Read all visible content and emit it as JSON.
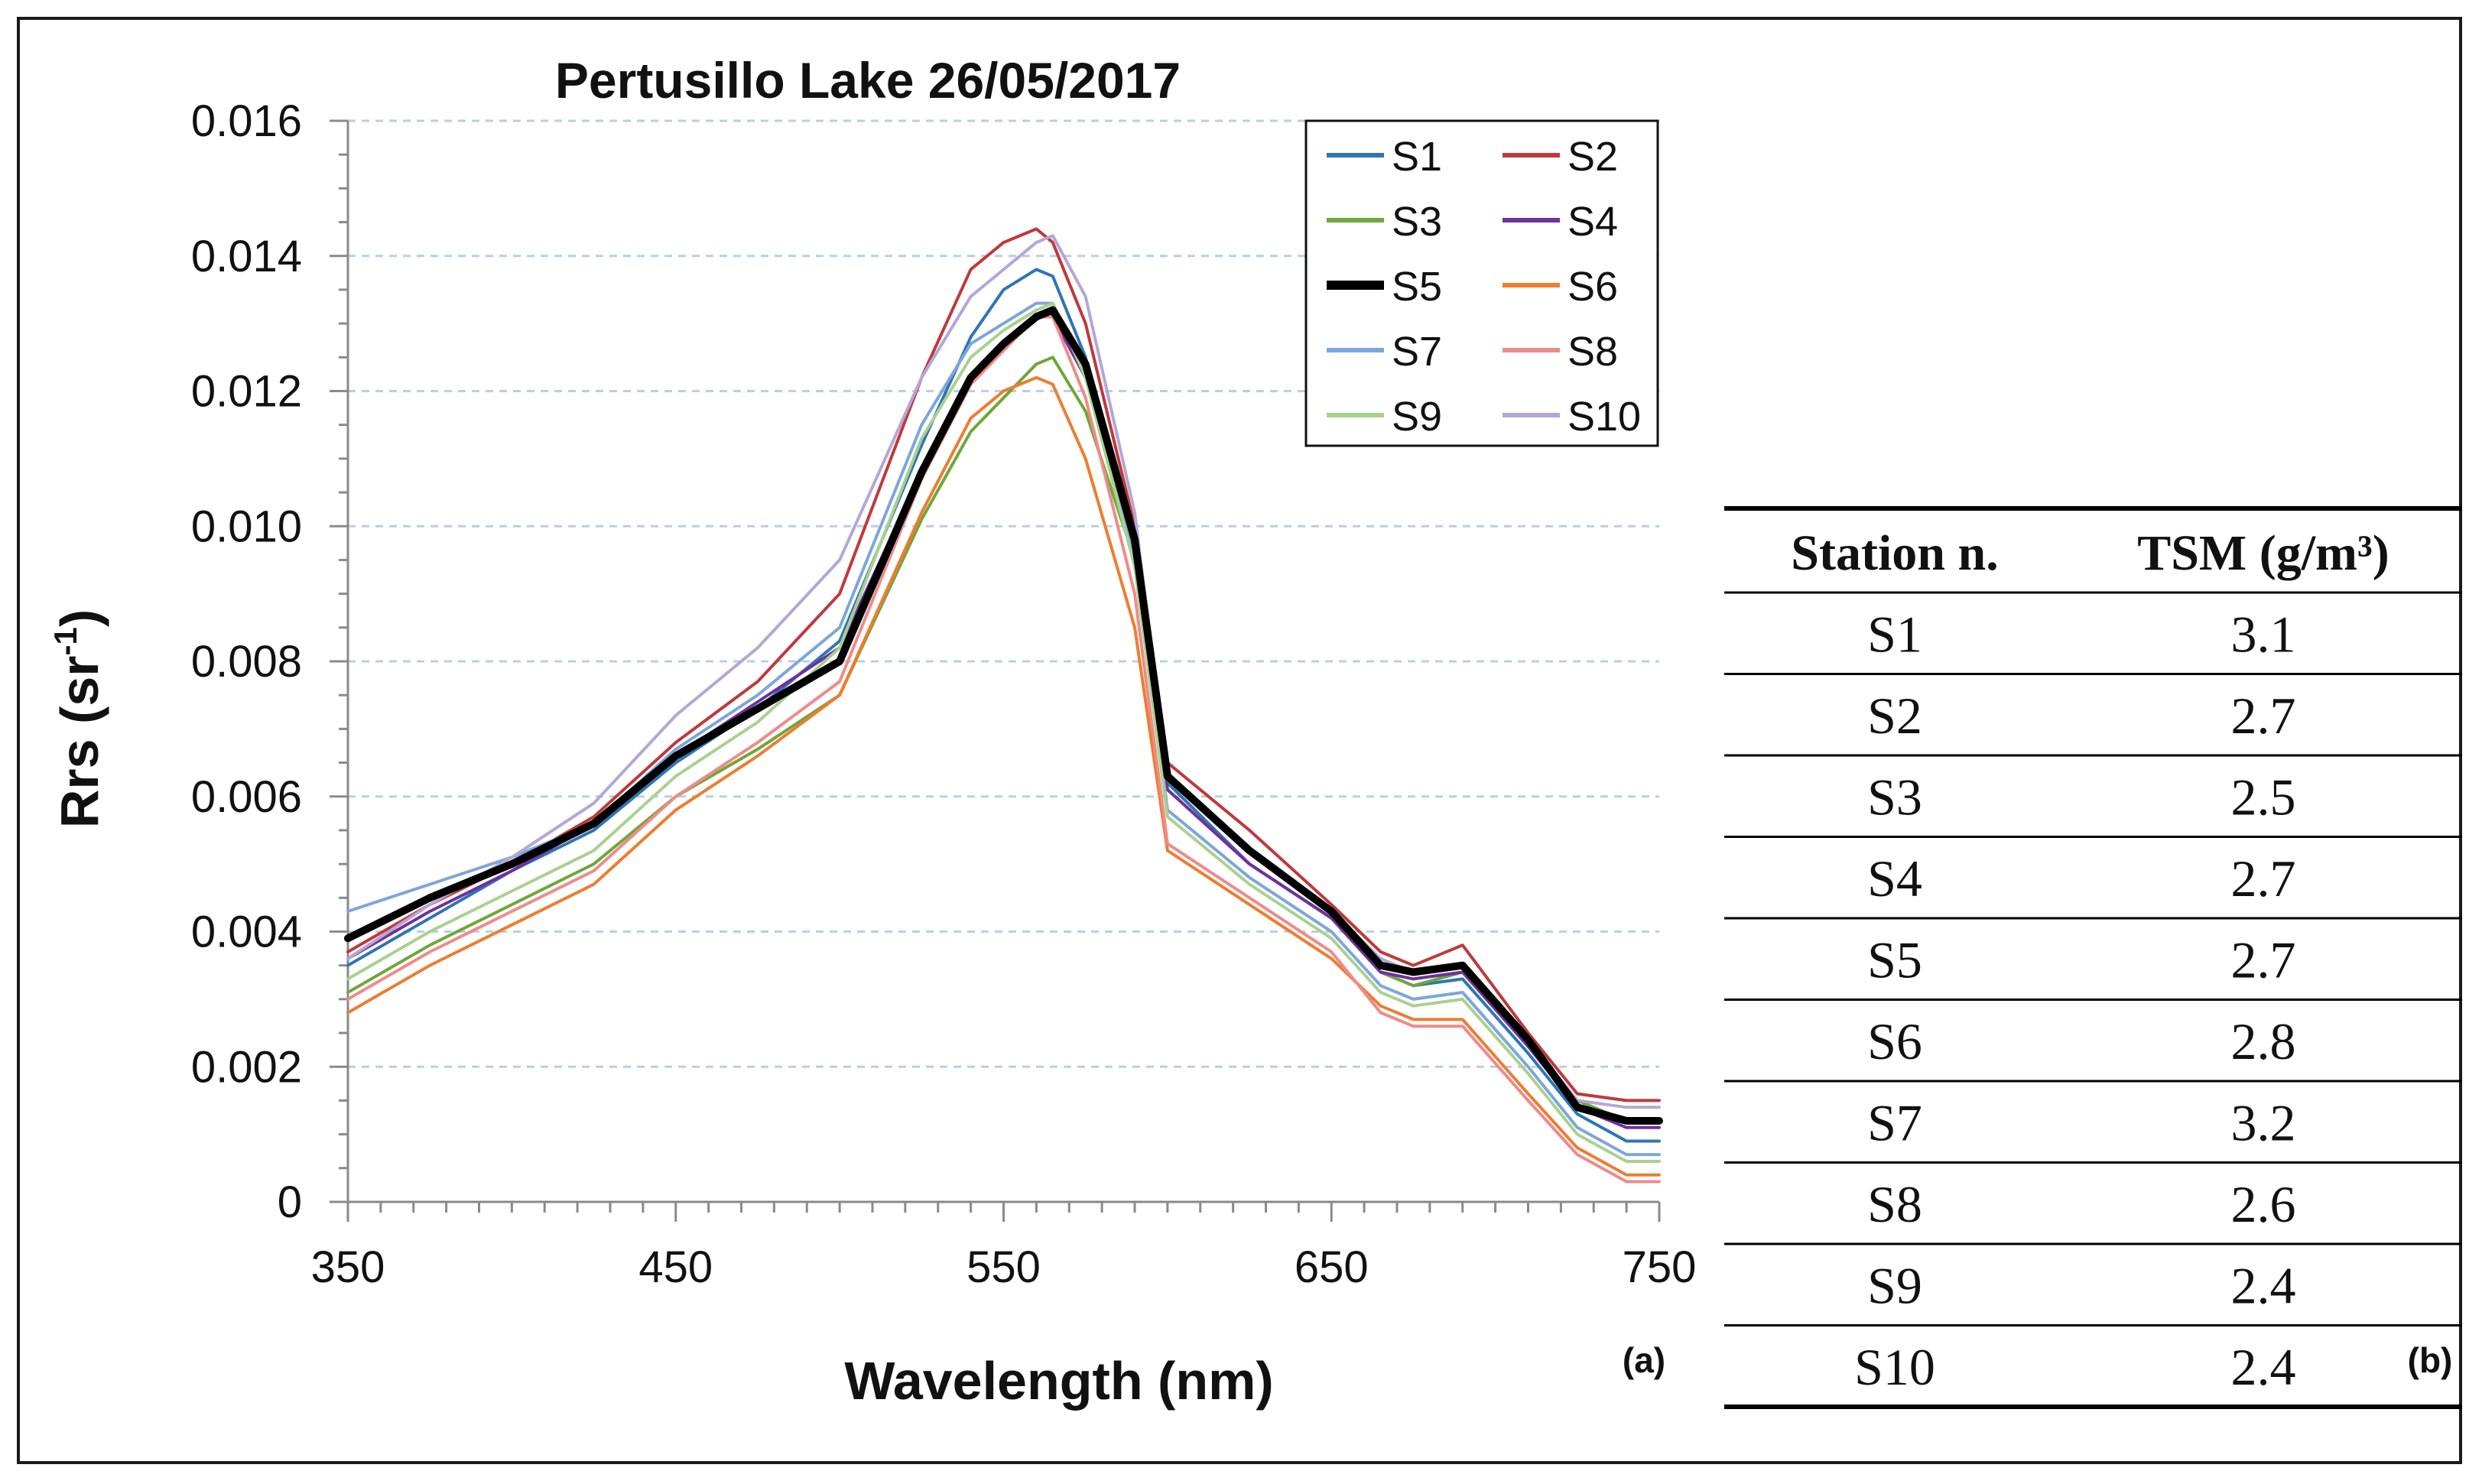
{
  "chart_data": {
    "type": "line",
    "title": "Pertusillo Lake 26/05/2017",
    "xlabel": "Wavelength (nm)",
    "ylabel_main": "Rrs (sr",
    "ylabel_sup": "-1",
    "ylabel_close": ")",
    "xlim": [
      350,
      750
    ],
    "ylim": [
      0,
      0.016
    ],
    "x_ticks": [
      350,
      450,
      550,
      650,
      750
    ],
    "x_tick_labels": [
      "350",
      "450",
      "550",
      "650",
      "750"
    ],
    "y_ticks": [
      0,
      0.002,
      0.004,
      0.006,
      0.008,
      0.01,
      0.012,
      0.014,
      0.016
    ],
    "y_tick_labels": [
      "0",
      "0.002",
      "0.004",
      "0.006",
      "0.008",
      "0.010",
      "0.012",
      "0.014",
      "0.016"
    ],
    "grid": "horizontal dashed",
    "legend_position": "top-right",
    "panel_label": "(a)",
    "x": [
      350,
      375,
      400,
      425,
      450,
      475,
      500,
      525,
      540,
      550,
      560,
      565,
      575,
      590,
      600,
      625,
      650,
      665,
      675,
      690,
      710,
      725,
      740,
      750
    ],
    "series": [
      {
        "name": "S1",
        "color": "#2e75b6",
        "width": 4,
        "values": [
          0.0035,
          0.0042,
          0.0049,
          0.0055,
          0.0065,
          0.0073,
          0.0083,
          0.0112,
          0.0128,
          0.0135,
          0.0138,
          0.0137,
          0.0125,
          0.0095,
          0.0062,
          0.005,
          0.0042,
          0.0034,
          0.0032,
          0.0033,
          0.0022,
          0.0013,
          0.0009,
          0.0009
        ]
      },
      {
        "name": "S2",
        "color": "#c0393b",
        "width": 4,
        "values": [
          0.0037,
          0.0044,
          0.005,
          0.0057,
          0.0068,
          0.0077,
          0.009,
          0.0122,
          0.0138,
          0.0142,
          0.0144,
          0.0142,
          0.013,
          0.01,
          0.0065,
          0.0055,
          0.0044,
          0.0037,
          0.0035,
          0.0038,
          0.0025,
          0.0016,
          0.0015,
          0.0015
        ]
      },
      {
        "name": "S3",
        "color": "#6fa73a",
        "width": 4,
        "values": [
          0.0031,
          0.0038,
          0.0044,
          0.005,
          0.006,
          0.0067,
          0.0075,
          0.0101,
          0.0114,
          0.0119,
          0.0124,
          0.0125,
          0.0117,
          0.0095,
          0.0061,
          0.005,
          0.0042,
          0.0034,
          0.0032,
          0.0034,
          0.0024,
          0.0015,
          0.0012,
          0.0012
        ]
      },
      {
        "name": "S4",
        "color": "#7030a0",
        "width": 4,
        "values": [
          0.0036,
          0.0043,
          0.0049,
          0.0056,
          0.0066,
          0.0074,
          0.0082,
          0.0108,
          0.0122,
          0.0127,
          0.0131,
          0.0131,
          0.0122,
          0.0096,
          0.0061,
          0.005,
          0.0042,
          0.0034,
          0.0033,
          0.0034,
          0.0023,
          0.0014,
          0.0011,
          0.0011
        ]
      },
      {
        "name": "S5",
        "color": "#000000",
        "width": 10,
        "values": [
          0.0039,
          0.0045,
          0.005,
          0.0056,
          0.0066,
          0.0073,
          0.008,
          0.0108,
          0.0122,
          0.0127,
          0.0131,
          0.0132,
          0.0124,
          0.0098,
          0.0063,
          0.0052,
          0.0043,
          0.0035,
          0.0034,
          0.0035,
          0.0024,
          0.0014,
          0.0012,
          0.0012
        ]
      },
      {
        "name": "S6",
        "color": "#ed7d31",
        "width": 4,
        "values": [
          0.0028,
          0.0035,
          0.0041,
          0.0047,
          0.0058,
          0.0066,
          0.0075,
          0.0102,
          0.0116,
          0.012,
          0.0122,
          0.0121,
          0.011,
          0.0085,
          0.0052,
          0.0044,
          0.0036,
          0.0029,
          0.0027,
          0.0027,
          0.0016,
          0.0008,
          0.0004,
          0.0004
        ]
      },
      {
        "name": "S7",
        "color": "#7ca6dc",
        "width": 4,
        "values": [
          0.0043,
          0.0047,
          0.0051,
          0.0056,
          0.0067,
          0.0075,
          0.0085,
          0.0115,
          0.0127,
          0.013,
          0.0133,
          0.0133,
          0.0123,
          0.0095,
          0.0058,
          0.0048,
          0.004,
          0.0032,
          0.003,
          0.0031,
          0.002,
          0.0011,
          0.0007,
          0.0007
        ]
      },
      {
        "name": "S8",
        "color": "#f08a8a",
        "width": 4,
        "values": [
          0.003,
          0.0037,
          0.0043,
          0.0049,
          0.006,
          0.0068,
          0.0077,
          0.0107,
          0.0121,
          0.0126,
          0.0131,
          0.0131,
          0.0119,
          0.009,
          0.0053,
          0.0045,
          0.0037,
          0.0028,
          0.0026,
          0.0026,
          0.0015,
          0.0007,
          0.0003,
          0.0003
        ]
      },
      {
        "name": "S9",
        "color": "#a9d18e",
        "width": 4,
        "values": [
          0.0033,
          0.004,
          0.0046,
          0.0052,
          0.0063,
          0.0071,
          0.0082,
          0.0113,
          0.0125,
          0.0129,
          0.0132,
          0.0133,
          0.0122,
          0.0094,
          0.0057,
          0.0047,
          0.0039,
          0.0031,
          0.0029,
          0.003,
          0.0019,
          0.001,
          0.0006,
          0.0006
        ]
      },
      {
        "name": "S10",
        "color": "#b4a7d6",
        "width": 4,
        "values": [
          0.0036,
          0.0044,
          0.0051,
          0.0059,
          0.0072,
          0.0082,
          0.0095,
          0.0122,
          0.0134,
          0.0138,
          0.0142,
          0.0143,
          0.0134,
          0.0102,
          0.0063,
          0.0052,
          0.0043,
          0.0036,
          0.0034,
          0.0035,
          0.0024,
          0.0015,
          0.0014,
          0.0014
        ]
      }
    ]
  },
  "table": {
    "panel_label": "(b)",
    "headers": [
      "Station n.",
      "TSM (g/m³)"
    ],
    "rows": [
      [
        "S1",
        "3.1"
      ],
      [
        "S2",
        "2.7"
      ],
      [
        "S3",
        "2.5"
      ],
      [
        "S4",
        "2.7"
      ],
      [
        "S5",
        "2.7"
      ],
      [
        "S6",
        "2.8"
      ],
      [
        "S7",
        "3.2"
      ],
      [
        "S8",
        "2.6"
      ],
      [
        "S9",
        "2.4"
      ],
      [
        "S10",
        "2.4"
      ]
    ]
  }
}
